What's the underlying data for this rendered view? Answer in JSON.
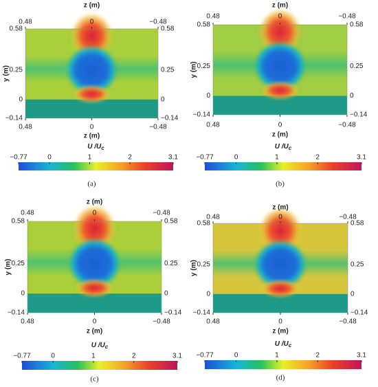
{
  "panels": [
    {
      "caption": "(a)",
      "z_label_top": "z (m)",
      "z_label_bottom": "z (m)",
      "y_label": "y (m)",
      "z_ticks_top": [
        "0.48",
        "0",
        "−0.48"
      ],
      "z_ticks_bottom": [
        "0.48",
        "0",
        "−0.48"
      ],
      "y_ticks_left": [
        "0.58",
        "0.25",
        "0",
        "−0.14"
      ],
      "y_ticks_right": [
        "0.58",
        "0.25",
        "0",
        "−0.14"
      ],
      "colorbar_label": [
        "U /U",
        "c"
      ],
      "colorbar_ticks": [
        "−0.77",
        "0",
        "1",
        "2",
        "3.1"
      ]
    },
    {
      "caption": "(b)",
      "z_label_top": "z (m)",
      "z_label_bottom": "z (m)",
      "y_label": "y (m)",
      "z_ticks_top": [
        "0.48",
        "0",
        "−0.48"
      ],
      "z_ticks_bottom": [
        "0.48",
        "0",
        "−0.48"
      ],
      "y_ticks_left": [
        "0.58",
        "0.25",
        "0",
        "−0.14"
      ],
      "y_ticks_right": [
        "0.58",
        "0.25",
        "0",
        "−0.14"
      ],
      "colorbar_label": [
        "U /U",
        "c"
      ],
      "colorbar_ticks": [
        "−0.77",
        "0",
        "1",
        "2",
        "3.1"
      ]
    },
    {
      "caption": "(c)",
      "z_label_top": "z (m)",
      "z_label_bottom": "z (m)",
      "y_label": "y (m)",
      "z_ticks_top": [
        "0.48",
        "0",
        "−0.48"
      ],
      "z_ticks_bottom": [
        "0.48",
        "0",
        "−0.48"
      ],
      "y_ticks_left": [
        "0.58",
        "0.25",
        "0",
        "−0.14"
      ],
      "y_ticks_right": [
        "0.58",
        "0.25",
        "0",
        "−0.14"
      ],
      "colorbar_label": [
        "U /U",
        "c"
      ],
      "colorbar_ticks": [
        "−0.77",
        "0",
        "1",
        "2",
        "3.1"
      ]
    },
    {
      "caption": "(d)",
      "z_label_top": "z (m)",
      "z_label_bottom": "z (m)",
      "y_label": "y (m)",
      "z_ticks_top": [
        "0.48",
        "0",
        "−0.48"
      ],
      "z_ticks_bottom": [
        "0.48",
        "0",
        "−0.48"
      ],
      "y_ticks_left": [
        "0.58",
        "0.25",
        "0",
        "−0.14"
      ],
      "y_ticks_right": [
        "0.58",
        "0.25",
        "0",
        "−0.14"
      ],
      "colorbar_label": [
        "U /U",
        "c"
      ],
      "colorbar_ticks": [
        "−0.77",
        "0",
        "1",
        "2",
        "3.1"
      ]
    }
  ]
}
